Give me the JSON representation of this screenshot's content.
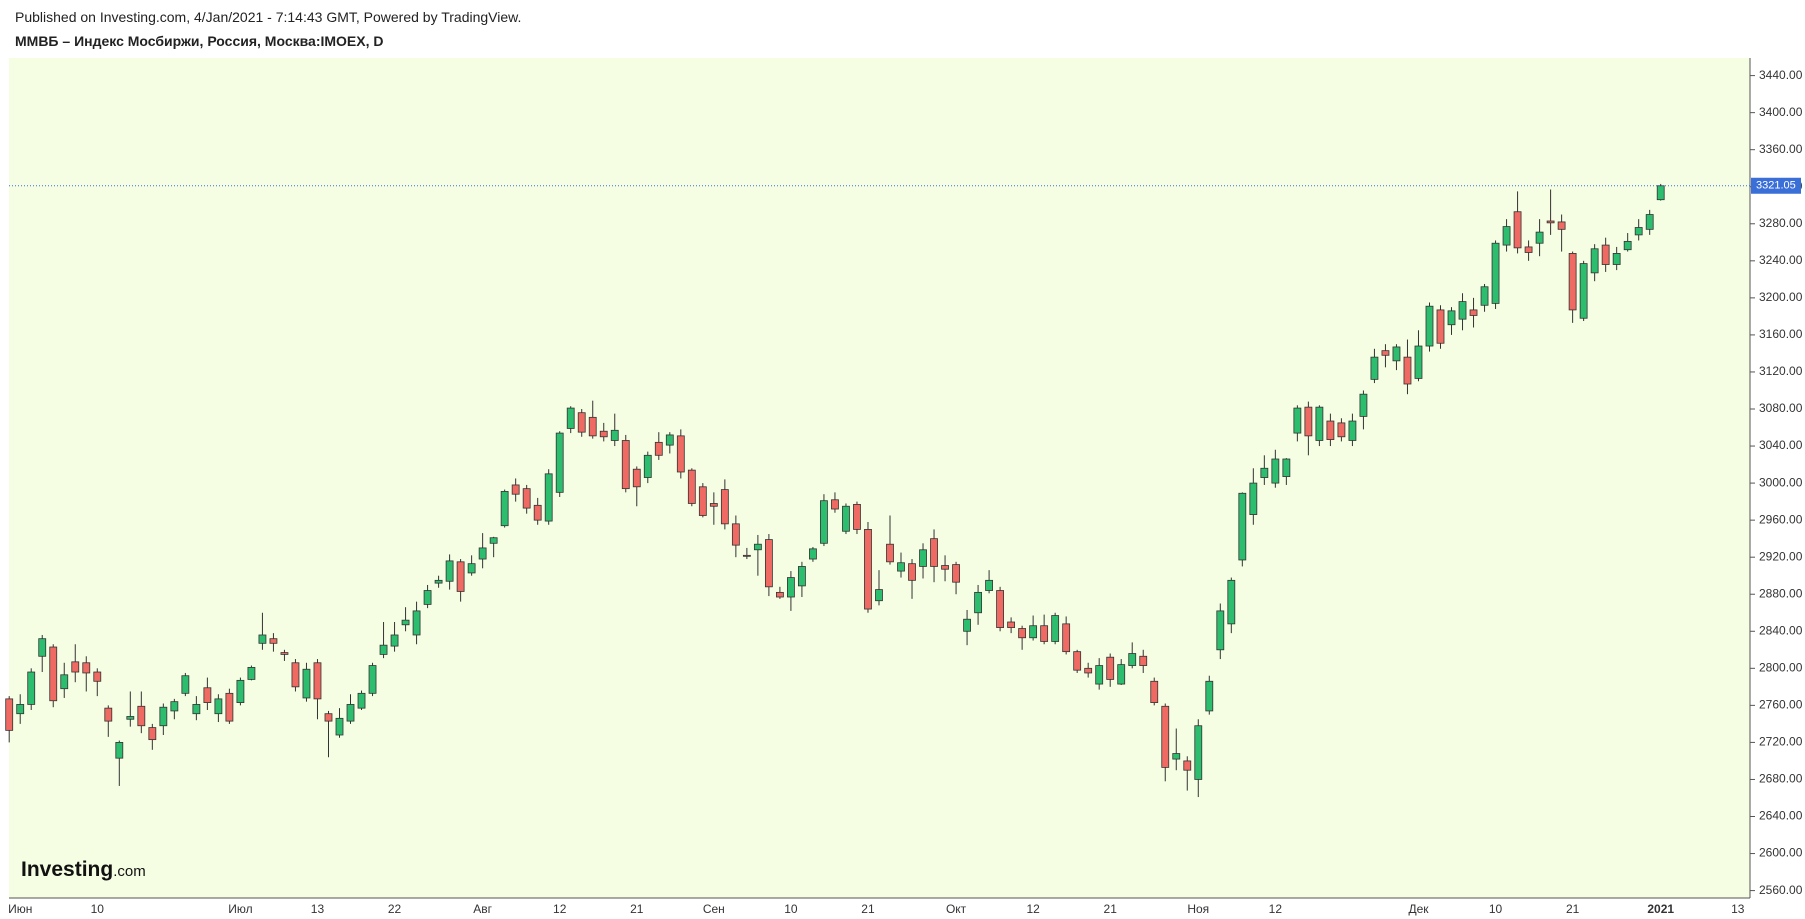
{
  "chart_data": {
    "type": "candlestick",
    "source": "Published on Investing.com, 4/Jan/2021 - 7:14:43 GMT, Powered by TradingView.",
    "title": "ММВБ – Индекс Мосбиржи, Россия, Москва:IMOEX, D",
    "logo": {
      "brand": "Investing",
      "suffix": ".com"
    },
    "up_color": "#2dbd6e",
    "down_color": "#ef6a63",
    "background": "#f5fde2",
    "grid": false,
    "last_price": 3321.05,
    "last_price_color": "#3b6fd8",
    "ylim": [
      2552,
      3459
    ],
    "yticks": [
      {
        "value": 2560,
        "label": "2560.00"
      },
      {
        "value": 2600,
        "label": "2600.00"
      },
      {
        "value": 2640,
        "label": "2640.00"
      },
      {
        "value": 2680,
        "label": "2680.00"
      },
      {
        "value": 2720,
        "label": "2720.00"
      },
      {
        "value": 2760,
        "label": "2760.00"
      },
      {
        "value": 2800,
        "label": "2800.00"
      },
      {
        "value": 2840,
        "label": "2840.00"
      },
      {
        "value": 2880,
        "label": "2880.00"
      },
      {
        "value": 2920,
        "label": "2920.00"
      },
      {
        "value": 2960,
        "label": "2960.00"
      },
      {
        "value": 3000,
        "label": "3000.00"
      },
      {
        "value": 3040,
        "label": "3040.00"
      },
      {
        "value": 3080,
        "label": "3080.00"
      },
      {
        "value": 3120,
        "label": "3120.00"
      },
      {
        "value": 3160,
        "label": "3160.00"
      },
      {
        "value": 3200,
        "label": "3200.00"
      },
      {
        "value": 3240,
        "label": "3240.00"
      },
      {
        "value": 3280,
        "label": "3280.00"
      },
      {
        "value": 3320,
        "label": "3320.00"
      },
      {
        "value": 3360,
        "label": "3360.00"
      },
      {
        "value": 3400,
        "label": "3400.00"
      },
      {
        "value": 3440,
        "label": "3440.00"
      }
    ],
    "categories": [
      null,
      "Июн",
      null,
      null,
      null,
      null,
      null,
      null,
      "10",
      null,
      null,
      null,
      null,
      null,
      null,
      null,
      null,
      null,
      null,
      null,
      null,
      "Июл",
      null,
      null,
      null,
      null,
      null,
      null,
      "13",
      null,
      null,
      null,
      null,
      null,
      null,
      "22",
      null,
      null,
      null,
      null,
      null,
      null,
      null,
      "Авг",
      null,
      null,
      null,
      null,
      null,
      null,
      "12",
      null,
      null,
      null,
      null,
      null,
      null,
      "21",
      null,
      null,
      null,
      null,
      null,
      null,
      "Сен",
      null,
      null,
      null,
      null,
      null,
      null,
      "10",
      null,
      null,
      null,
      null,
      null,
      null,
      "21",
      null,
      null,
      null,
      null,
      null,
      null,
      null,
      "Окт",
      null,
      null,
      null,
      null,
      null,
      null,
      "12",
      null,
      null,
      null,
      null,
      null,
      null,
      "21",
      null,
      null,
      null,
      null,
      null,
      null,
      null,
      "Ноя",
      null,
      null,
      null,
      null,
      null,
      null,
      "12",
      null,
      null,
      null,
      null,
      null,
      null,
      null,
      null,
      null,
      null,
      null,
      null,
      "Дек",
      null,
      null,
      null,
      null,
      null,
      null,
      "10",
      null,
      null,
      null,
      null,
      null,
      null,
      "21",
      null,
      null,
      null,
      null,
      null,
      null,
      null,
      "2021",
      null,
      null,
      null,
      null,
      null,
      null,
      "13"
    ],
    "open": [
      2767,
      2751,
      2761,
      2813,
      2823,
      2778,
      2807,
      2806,
      2796,
      2757,
      2703,
      2745,
      2759,
      2736,
      2738,
      2754,
      2773,
      2751,
      2779,
      2751,
      2773,
      2763,
      2788,
      2827,
      2832,
      2817,
      2806,
      2768,
      2806,
      2751,
      2728,
      2743,
      2757,
      2773,
      2815,
      2824,
      2847,
      2836,
      2869,
      2892,
      2894,
      2915,
      2903,
      2918,
      2935,
      2954,
      2998,
      2994,
      2976,
      2959,
      2990,
      3059,
      3076,
      3071,
      3056,
      3046,
      3046,
      3015,
      3006,
      3044,
      3041,
      3051,
      3014,
      2996,
      2978,
      2993,
      2956,
      2922,
      2928,
      2939,
      2882,
      2877,
      2889,
      2918,
      2935,
      2982,
      2948,
      2977,
      2950,
      2873,
      2934,
      2905,
      2913,
      2910,
      2940,
      2911,
      2912,
      2840,
      2860,
      2884,
      2884,
      2850,
      2843,
      2833,
      2846,
      2829,
      2848,
      2818,
      2800,
      2783,
      2812,
      2783,
      2803,
      2813,
      2786,
      2759,
      2702,
      2700,
      2680,
      2754,
      2820,
      2848,
      2917,
      2966,
      3006,
      3000,
      3007,
      3054,
      3082,
      3046,
      3067,
      3065,
      3046,
      3072,
      3112,
      3143,
      3132,
      3136,
      3113,
      3148,
      3187,
      3171,
      3177,
      3187,
      3192,
      3194,
      3257,
      3293,
      3255,
      3259,
      3283,
      3282,
      3248,
      3178,
      3227,
      3257,
      3236,
      3252,
      3268,
      3274,
      3306,
      null,
      null,
      null,
      null,
      null,
      null,
      null
    ],
    "high": [
      2770,
      2772,
      2800,
      2836,
      2826,
      2806,
      2826,
      2813,
      2800,
      2760,
      2722,
      2775,
      2775,
      2740,
      2762,
      2767,
      2795,
      2770,
      2790,
      2772,
      2778,
      2790,
      2803,
      2860,
      2838,
      2820,
      2810,
      2806,
      2810,
      2754,
      2757,
      2772,
      2776,
      2806,
      2850,
      2850,
      2866,
      2872,
      2890,
      2900,
      2923,
      2918,
      2922,
      2946,
      2942,
      2993,
      3005,
      2998,
      2984,
      3015,
      3056,
      3083,
      3080,
      3089,
      3065,
      3075,
      3052,
      3018,
      3034,
      3055,
      3055,
      3058,
      3016,
      3000,
      2990,
      3004,
      2965,
      2930,
      2944,
      2945,
      2888,
      2905,
      2915,
      2931,
      2988,
      2990,
      2978,
      2980,
      2958,
      2906,
      2965,
      2925,
      2918,
      2935,
      2950,
      2922,
      2915,
      2863,
      2890,
      2906,
      2888,
      2855,
      2846,
      2857,
      2858,
      2860,
      2856,
      2820,
      2806,
      2811,
      2816,
      2810,
      2828,
      2820,
      2790,
      2762,
      2735,
      2705,
      2745,
      2792,
      2870,
      2898,
      2990,
      3016,
      3030,
      3036,
      3027,
      3084,
      3088,
      3084,
      3075,
      3070,
      3075,
      3100,
      3145,
      3150,
      3150,
      3155,
      3165,
      3195,
      3192,
      3190,
      3205,
      3200,
      3215,
      3262,
      3285,
      3315,
      3262,
      3285,
      3317,
      3290,
      3250,
      3240,
      3258,
      3265,
      3255,
      3270,
      3285,
      3295,
      3323,
      null,
      null,
      null,
      null,
      null,
      null,
      null
    ],
    "low": [
      2720,
      2740,
      2755,
      2796,
      2758,
      2768,
      2785,
      2775,
      2770,
      2726,
      2673,
      2737,
      2730,
      2712,
      2728,
      2745,
      2770,
      2744,
      2755,
      2742,
      2740,
      2760,
      2787,
      2820,
      2818,
      2808,
      2775,
      2764,
      2745,
      2704,
      2725,
      2740,
      2755,
      2770,
      2811,
      2818,
      2840,
      2826,
      2865,
      2887,
      2885,
      2872,
      2900,
      2908,
      2920,
      2952,
      2980,
      2967,
      2955,
      2955,
      2985,
      3054,
      3050,
      3048,
      3045,
      3040,
      2990,
      2975,
      3000,
      3025,
      3032,
      3005,
      2975,
      2963,
      2955,
      2950,
      2920,
      2918,
      2900,
      2878,
      2875,
      2862,
      2877,
      2915,
      2932,
      2968,
      2945,
      2945,
      2860,
      2868,
      2912,
      2898,
      2875,
      2897,
      2893,
      2894,
      2880,
      2825,
      2847,
      2881,
      2840,
      2838,
      2820,
      2830,
      2826,
      2826,
      2815,
      2795,
      2790,
      2777,
      2780,
      2782,
      2800,
      2795,
      2760,
      2678,
      2690,
      2668,
      2661,
      2750,
      2810,
      2838,
      2910,
      2955,
      2998,
      2995,
      2998,
      3045,
      3030,
      3040,
      3040,
      3045,
      3040,
      3058,
      3108,
      3125,
      3122,
      3096,
      3110,
      3142,
      3145,
      3160,
      3165,
      3168,
      3185,
      3188,
      3250,
      3248,
      3240,
      3245,
      3268,
      3250,
      3173,
      3175,
      3218,
      3228,
      3230,
      3250,
      3262,
      3268,
      3305,
      null,
      null,
      null,
      null,
      null,
      null,
      null
    ],
    "close": [
      2733,
      2761,
      2796,
      2832,
      2765,
      2793,
      2796,
      2795,
      2786,
      2743,
      2720,
      2748,
      2738,
      2723,
      2758,
      2764,
      2792,
      2761,
      2763,
      2767,
      2743,
      2787,
      2801,
      2836,
      2827,
      2815,
      2780,
      2799,
      2767,
      2743,
      2746,
      2761,
      2773,
      2803,
      2825,
      2836,
      2852,
      2862,
      2884,
      2895,
      2916,
      2883,
      2913,
      2930,
      2941,
      2991,
      2988,
      2973,
      2960,
      3010,
      3054,
      3081,
      3055,
      3051,
      3050,
      3057,
      2994,
      2996,
      3030,
      3030,
      3052,
      3012,
      2978,
      2965,
      2975,
      2956,
      2933,
      2921,
      2934,
      2888,
      2877,
      2898,
      2910,
      2929,
      2981,
      2972,
      2975,
      2950,
      2864,
      2885,
      2915,
      2914,
      2895,
      2928,
      2910,
      2907,
      2893,
      2853,
      2882,
      2895,
      2844,
      2844,
      2833,
      2846,
      2829,
      2857,
      2818,
      2798,
      2795,
      2803,
      2788,
      2804,
      2816,
      2803,
      2763,
      2693,
      2708,
      2690,
      2738,
      2786,
      2862,
      2895,
      2989,
      3000,
      3016,
      3026,
      3026,
      3081,
      3051,
      3082,
      3047,
      3050,
      3067,
      3096,
      3136,
      3138,
      3147,
      3107,
      3148,
      3191,
      3151,
      3186,
      3196,
      3181,
      3212,
      3259,
      3277,
      3254,
      3249,
      3271,
      3281,
      3274,
      3187,
      3237,
      3253,
      3236,
      3248,
      3261,
      3276,
      3290,
      3321.05,
      null,
      null,
      null,
      null,
      null,
      null,
      null
    ]
  }
}
